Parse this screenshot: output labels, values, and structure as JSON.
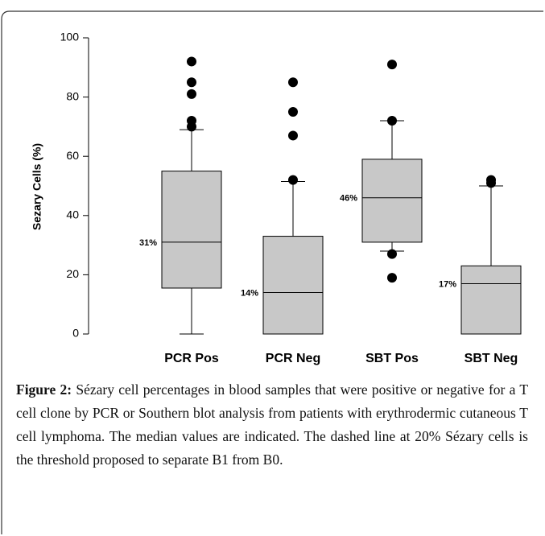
{
  "chart_data": {
    "type": "box",
    "y_label": "Sezary Cells (%)",
    "categories": [
      "PCR Pos",
      "PCR Neg",
      "SBT Pos",
      "SBT Neg"
    ],
    "boxes": [
      {
        "low": 0,
        "q1": 15.5,
        "median": 31,
        "q3": 55,
        "high": 69,
        "outliers": [
          70,
          72,
          81,
          85,
          92
        ],
        "median_label": "31%"
      },
      {
        "low": 0,
        "q1": 0,
        "median": 14,
        "q3": 33,
        "high": 51.5,
        "outliers": [
          52,
          67,
          75,
          85
        ],
        "median_label": "14%"
      },
      {
        "low": 28,
        "q1": 31,
        "median": 46,
        "q3": 59,
        "high": 72,
        "outliers": [
          19,
          27,
          72,
          91
        ],
        "median_label": "46%"
      },
      {
        "low": 0,
        "q1": 0,
        "median": 17,
        "q3": 23,
        "high": 50,
        "outliers": [
          51,
          52
        ],
        "median_label": "17%"
      }
    ],
    "color": "#c8c8c8",
    "ylim": [
      0,
      100
    ],
    "yticks": [
      0,
      20,
      40,
      60,
      80,
      100
    ]
  },
  "caption": {
    "label": "Figure 2:",
    "text": "Sézary cell percentages in blood samples that were positive or negative for a T cell clone by PCR or Southern blot analysis from patients with erythrodermic cutaneous T cell lymphoma. The median values are indicated. The dashed line at 20% Sézary cells is the threshold proposed to separate B1 from B0."
  }
}
